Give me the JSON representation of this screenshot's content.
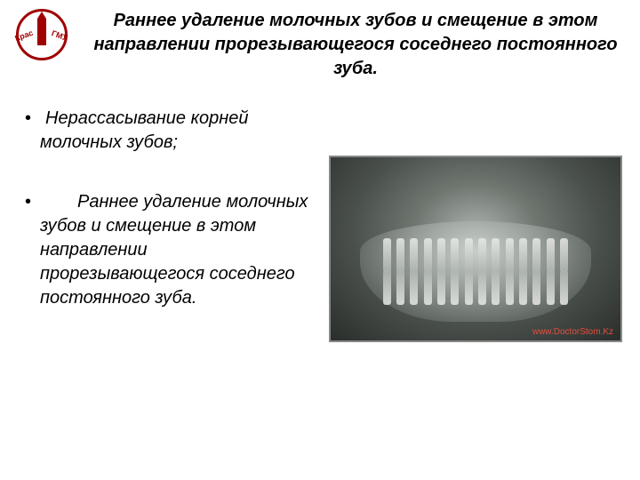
{
  "logo": {
    "left_text": "Крас",
    "right_text": "ГМУ"
  },
  "title": "Раннее удаление молочных зубов и    смещение в этом направлении   прорезывающегося соседнего постоянного зуба.",
  "bullets": [
    {
      "text": "Нерассасывание корней молочных зубов;"
    },
    {
      "text": "Раннее удаление молочных зубов и смещение в этом направлении прорезывающегося соседнего постоянного зуба."
    }
  ],
  "image": {
    "watermark": "www.DoctorStom.Kz",
    "tooth_count": 14
  },
  "colors": {
    "text": "#000000",
    "logo_red": "#a00000",
    "watermark": "#e05040",
    "background": "#ffffff"
  }
}
